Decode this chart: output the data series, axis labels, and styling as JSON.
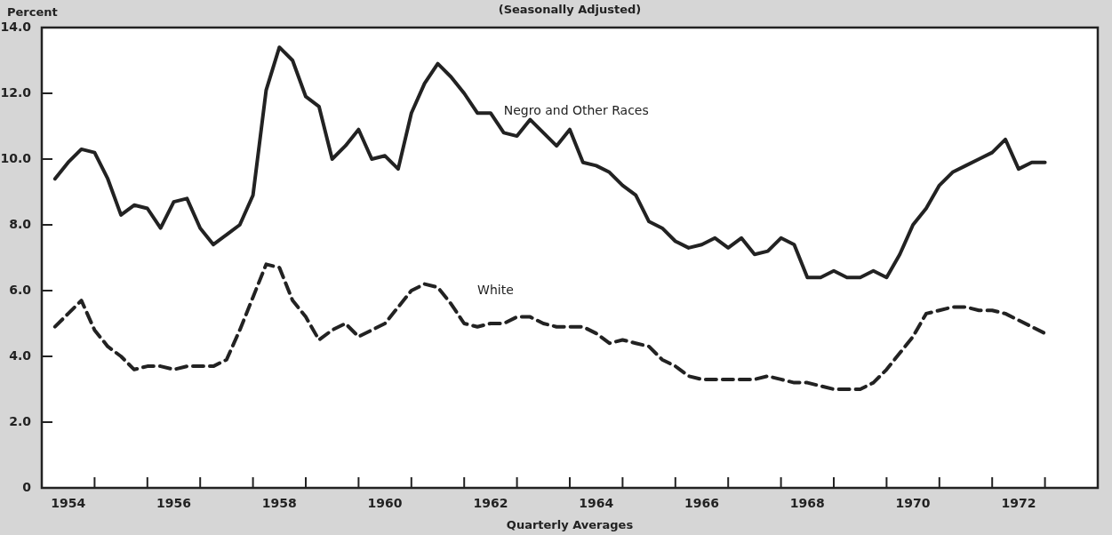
{
  "chart_data": {
    "type": "line",
    "subtitle": "(Seasonally Adjusted)",
    "ylabel": "Percent",
    "xlabel": "Quarterly Averages",
    "x": [
      1954.25,
      1954.5,
      1954.75,
      1955,
      1955.25,
      1955.5,
      1955.75,
      1956,
      1956.25,
      1956.5,
      1956.75,
      1957,
      1957.25,
      1957.5,
      1957.75,
      1958,
      1958.25,
      1958.5,
      1958.75,
      1959,
      1959.25,
      1959.5,
      1959.75,
      1960,
      1960.25,
      1960.5,
      1960.75,
      1961,
      1961.25,
      1961.5,
      1961.75,
      1962,
      1962.25,
      1962.5,
      1962.75,
      1963,
      1963.25,
      1963.5,
      1963.75,
      1964,
      1964.25,
      1964.5,
      1964.75,
      1965,
      1965.25,
      1965.5,
      1965.75,
      1966,
      1966.25,
      1966.5,
      1966.75,
      1967,
      1967.25,
      1967.5,
      1967.75,
      1968,
      1968.25,
      1968.5,
      1968.75,
      1969,
      1969.25,
      1969.5,
      1969.75,
      1970,
      1970.25,
      1970.5,
      1970.75,
      1971,
      1971.25,
      1971.5,
      1971.75,
      1972,
      1972.25,
      1972.5,
      1972.75,
      1973
    ],
    "xlim": [
      1954,
      1974
    ],
    "xticks": [
      {
        "value": 1954.5,
        "label": "1954"
      },
      {
        "value": 1955,
        "label": null
      },
      {
        "value": 1956,
        "label": null
      },
      {
        "value": 1956.5,
        "label": "1956"
      },
      {
        "value": 1957,
        "label": null
      },
      {
        "value": 1958,
        "label": null
      },
      {
        "value": 1958.5,
        "label": "1958"
      },
      {
        "value": 1959,
        "label": null
      },
      {
        "value": 1960,
        "label": null
      },
      {
        "value": 1960.5,
        "label": "1960"
      },
      {
        "value": 1961,
        "label": null
      },
      {
        "value": 1962,
        "label": null
      },
      {
        "value": 1962.5,
        "label": "1962"
      },
      {
        "value": 1963,
        "label": null
      },
      {
        "value": 1964,
        "label": null
      },
      {
        "value": 1964.5,
        "label": "1964"
      },
      {
        "value": 1965,
        "label": null
      },
      {
        "value": 1966,
        "label": null
      },
      {
        "value": 1966.5,
        "label": "1966"
      },
      {
        "value": 1967,
        "label": null
      },
      {
        "value": 1968,
        "label": null
      },
      {
        "value": 1968.5,
        "label": "1968"
      },
      {
        "value": 1969,
        "label": null
      },
      {
        "value": 1970,
        "label": null
      },
      {
        "value": 1970.5,
        "label": "1970"
      },
      {
        "value": 1971,
        "label": null
      },
      {
        "value": 1972,
        "label": null
      },
      {
        "value": 1972.5,
        "label": "1972"
      },
      {
        "value": 1973,
        "label": null
      }
    ],
    "ylim": [
      0,
      14
    ],
    "yticks": [
      0,
      {
        "value": 2,
        "label": "2.0"
      },
      {
        "value": 4,
        "label": "4.0"
      },
      {
        "value": 6,
        "label": "6.0"
      },
      {
        "value": 8,
        "label": "8.0"
      },
      {
        "value": 10,
        "label": "10.0"
      },
      {
        "value": 12,
        "label": "12.0"
      },
      {
        "value": 14,
        "label": "14.0"
      }
    ],
    "grid": false,
    "legend": false,
    "marker": "none",
    "series": [
      {
        "name": "Negro and Other Races",
        "color": "#222222",
        "line_style": "solid",
        "values": [
          9.4,
          9.9,
          10.3,
          10.2,
          9.4,
          8.3,
          8.6,
          8.5,
          7.9,
          8.7,
          8.8,
          7.9,
          7.4,
          7.7,
          8.0,
          8.9,
          12.1,
          13.4,
          13.0,
          11.9,
          11.6,
          10.0,
          10.4,
          10.9,
          10.0,
          10.1,
          9.7,
          11.4,
          12.3,
          12.9,
          12.5,
          12.0,
          11.4,
          11.4,
          10.8,
          10.7,
          11.2,
          10.8,
          10.4,
          10.9,
          9.9,
          9.8,
          9.6,
          9.2,
          8.9,
          8.1,
          7.9,
          7.5,
          7.3,
          7.4,
          7.6,
          7.3,
          7.6,
          7.1,
          7.2,
          7.6,
          7.4,
          6.4,
          6.4,
          6.6,
          6.4,
          6.4,
          6.6,
          6.4,
          7.1,
          8.0,
          8.5,
          9.2,
          9.6,
          9.8,
          10.0,
          10.2,
          10.6,
          9.7,
          9.9,
          9.9
        ]
      },
      {
        "name": "White",
        "color": "#222222",
        "line_style": "dashed",
        "values": [
          4.9,
          5.3,
          5.7,
          4.8,
          4.3,
          4.0,
          3.6,
          3.7,
          3.7,
          3.6,
          3.7,
          3.7,
          3.7,
          3.9,
          4.8,
          5.8,
          6.8,
          6.7,
          5.7,
          5.2,
          4.5,
          4.8,
          5.0,
          4.6,
          4.8,
          5.0,
          5.5,
          6.0,
          6.2,
          6.1,
          5.6,
          5.0,
          4.9,
          5.0,
          5.0,
          5.2,
          5.2,
          5.0,
          4.9,
          4.9,
          4.9,
          4.7,
          4.4,
          4.5,
          4.4,
          4.3,
          3.9,
          3.7,
          3.4,
          3.3,
          3.3,
          3.3,
          3.3,
          3.3,
          3.4,
          3.3,
          3.2,
          3.2,
          3.1,
          3.0,
          3.0,
          3.0,
          3.2,
          3.6,
          4.1,
          4.6,
          5.3,
          5.4,
          5.5,
          5.5,
          5.4,
          5.4,
          5.3,
          5.1,
          4.9,
          4.7
        ]
      }
    ]
  }
}
